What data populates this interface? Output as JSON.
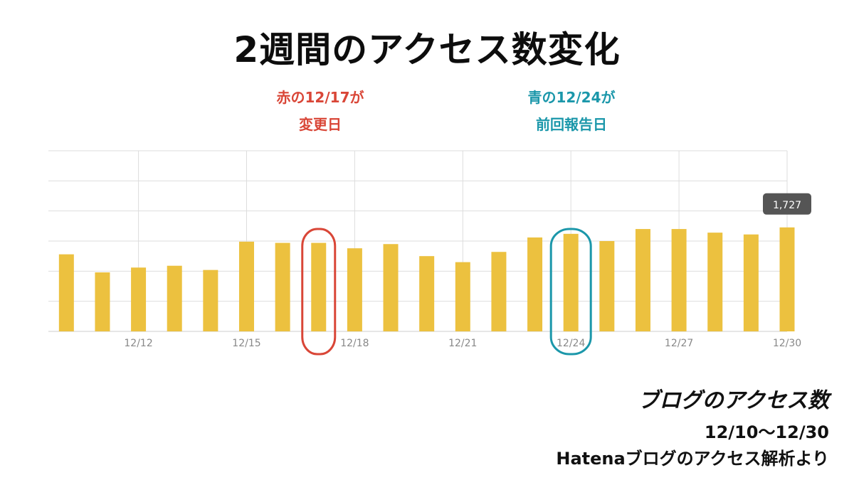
{
  "title": "2週間のアクセス数変化",
  "annotations": {
    "red": {
      "line1": "赤の12/17が",
      "line2": "変更日",
      "color": "#d94637"
    },
    "blue": {
      "line1": "青の12/24が",
      "line2": "前回報告日",
      "color": "#1b97aa"
    }
  },
  "caption": {
    "main": "ブログのアクセス数",
    "range": "12/10〜12/30",
    "source": "Hatenaブログのアクセス解析より"
  },
  "colors": {
    "bar": "#ecc13f",
    "grid": "#dddddd",
    "tick": "#888888",
    "tooltip_bg": "#555555"
  },
  "chart_data": {
    "type": "bar",
    "x": [
      "12/10",
      "12/11",
      "12/12",
      "12/13",
      "12/14",
      "12/15",
      "12/16",
      "12/17",
      "12/18",
      "12/19",
      "12/20",
      "12/21",
      "12/22",
      "12/23",
      "12/24",
      "12/25",
      "12/26",
      "12/27",
      "12/28",
      "12/29",
      "12/30"
    ],
    "values": [
      1280,
      980,
      1060,
      1090,
      1020,
      1490,
      1470,
      1470,
      1380,
      1450,
      1250,
      1150,
      1320,
      1560,
      1620,
      1500,
      1700,
      1700,
      1640,
      1610,
      1727
    ],
    "tick_labels": [
      "12/12",
      "12/15",
      "12/18",
      "12/21",
      "12/24",
      "12/27",
      "12/30"
    ],
    "ylim": [
      0,
      3000
    ],
    "grid": true,
    "tooltip": {
      "category": "12/30",
      "label": "1,727"
    },
    "highlights": [
      {
        "category": "12/17",
        "color": "#d94637"
      },
      {
        "category": "12/24",
        "color": "#1b97aa"
      }
    ]
  }
}
